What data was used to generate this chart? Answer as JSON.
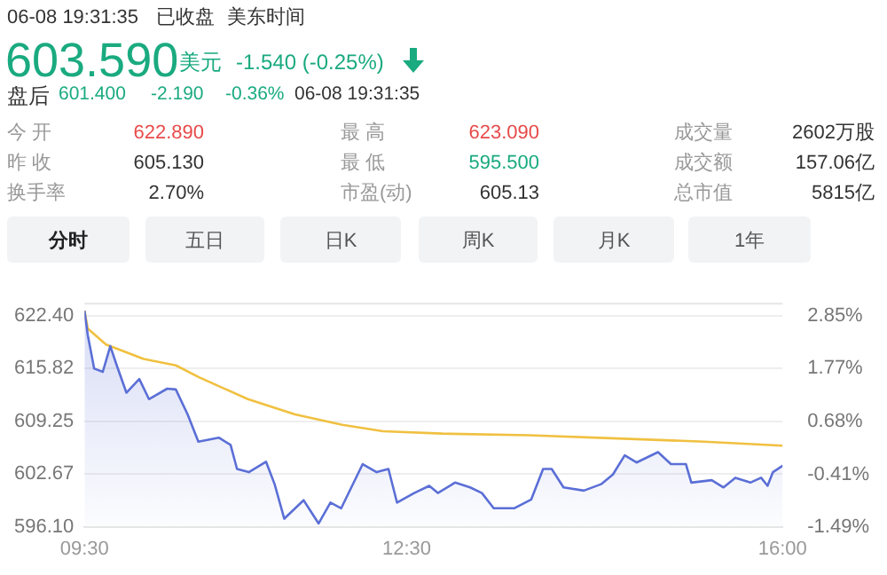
{
  "chart_data": {
    "type": "line",
    "annotations": [
      "06-08 19:31:35",
      "已收盘",
      "美东时间",
      "603.590",
      "美元",
      "-1.540 (-0.25%)",
      "盘后",
      "601.400",
      "-2.190",
      "-0.36%",
      "06-08 19:31:35",
      "今 开",
      "622.890",
      "最 高",
      "623.090",
      "成交量",
      "2602万股",
      "昨 收",
      "605.130",
      "最 低",
      "595.500",
      "成交额",
      "157.06亿",
      "换手率",
      "2.70%",
      "市盈(动)",
      "605.13",
      "总市值",
      "5815亿",
      "分时",
      "五日",
      "日K",
      "周K",
      "月K",
      "1年"
    ],
    "xlim": [
      9.5,
      16
    ],
    "xticks": [
      {
        "value": 9.5,
        "label": "09:30"
      },
      {
        "value": 12.5,
        "label": "12:30"
      },
      {
        "value": 16,
        "label": "16:00"
      }
    ],
    "ylim": [
      596.1,
      624.0
    ],
    "yticks": [
      {
        "value": 596.1,
        "label": "596.10"
      },
      602.67,
      609.25,
      615.82,
      {
        "value": 622.4,
        "label": "622.40"
      }
    ],
    "y2lim": [
      -1.49,
      3.12
    ],
    "y2ticks": [
      {
        "value": -1.49,
        "label": "-1.49%"
      },
      {
        "value": -0.41,
        "label": "-0.41%"
      },
      {
        "value": 0.68,
        "label": "0.68%"
      },
      {
        "value": 1.77,
        "label": "1.77%"
      },
      {
        "value": 2.85,
        "label": "2.85%"
      }
    ],
    "grid": "y",
    "legend": false,
    "marker": "none",
    "line_style": "solid",
    "series": [
      {
        "type": "area",
        "color": "#5b6fd6",
        "x": [
          9.5,
          9.53,
          9.59,
          9.67,
          9.74,
          9.8,
          9.89,
          10.01,
          10.1,
          10.27,
          10.35,
          10.46,
          10.56,
          10.75,
          10.86,
          10.92,
          11.03,
          11.19,
          11.27,
          11.36,
          11.54,
          11.68,
          11.79,
          11.89,
          12.09,
          12.22,
          12.33,
          12.41,
          12.57,
          12.71,
          12.79,
          12.95,
          13.09,
          13.2,
          13.31,
          13.5,
          13.66,
          13.77,
          13.85,
          13.96,
          14.15,
          14.31,
          14.42,
          14.53,
          14.64,
          14.84,
          14.96,
          15.1,
          15.15,
          15.34,
          15.45,
          15.56,
          15.7,
          15.8,
          15.86,
          15.91,
          16.0
        ],
        "values": [
          623.0,
          620.0,
          615.8,
          615.4,
          618.6,
          616.2,
          612.8,
          614.5,
          612.0,
          613.3,
          613.2,
          610.1,
          606.7,
          607.2,
          606.3,
          603.3,
          602.9,
          604.2,
          601.4,
          597.1,
          599.4,
          596.5,
          599.1,
          598.4,
          603.9,
          602.9,
          603.3,
          599.1,
          600.3,
          601.2,
          600.3,
          601.6,
          601.0,
          600.3,
          598.4,
          598.4,
          599.5,
          603.3,
          603.3,
          601.0,
          600.6,
          601.4,
          602.6,
          605.0,
          604.1,
          605.4,
          603.9,
          603.9,
          601.6,
          601.9,
          601.0,
          602.2,
          601.6,
          602.2,
          601.2,
          602.9,
          603.7
        ]
      },
      {
        "type": "line",
        "color": "#f0c040",
        "x": [
          9.5,
          9.53,
          9.7,
          10.05,
          10.35,
          10.57,
          11.02,
          11.46,
          11.9,
          12.28,
          12.83,
          13.64,
          14.46,
          15.27,
          16.0
        ],
        "values": [
          623.0,
          620.8,
          618.8,
          617.0,
          616.2,
          614.7,
          612.0,
          610.1,
          608.8,
          608.0,
          607.7,
          607.5,
          607.1,
          606.7,
          606.2
        ]
      }
    ]
  }
}
